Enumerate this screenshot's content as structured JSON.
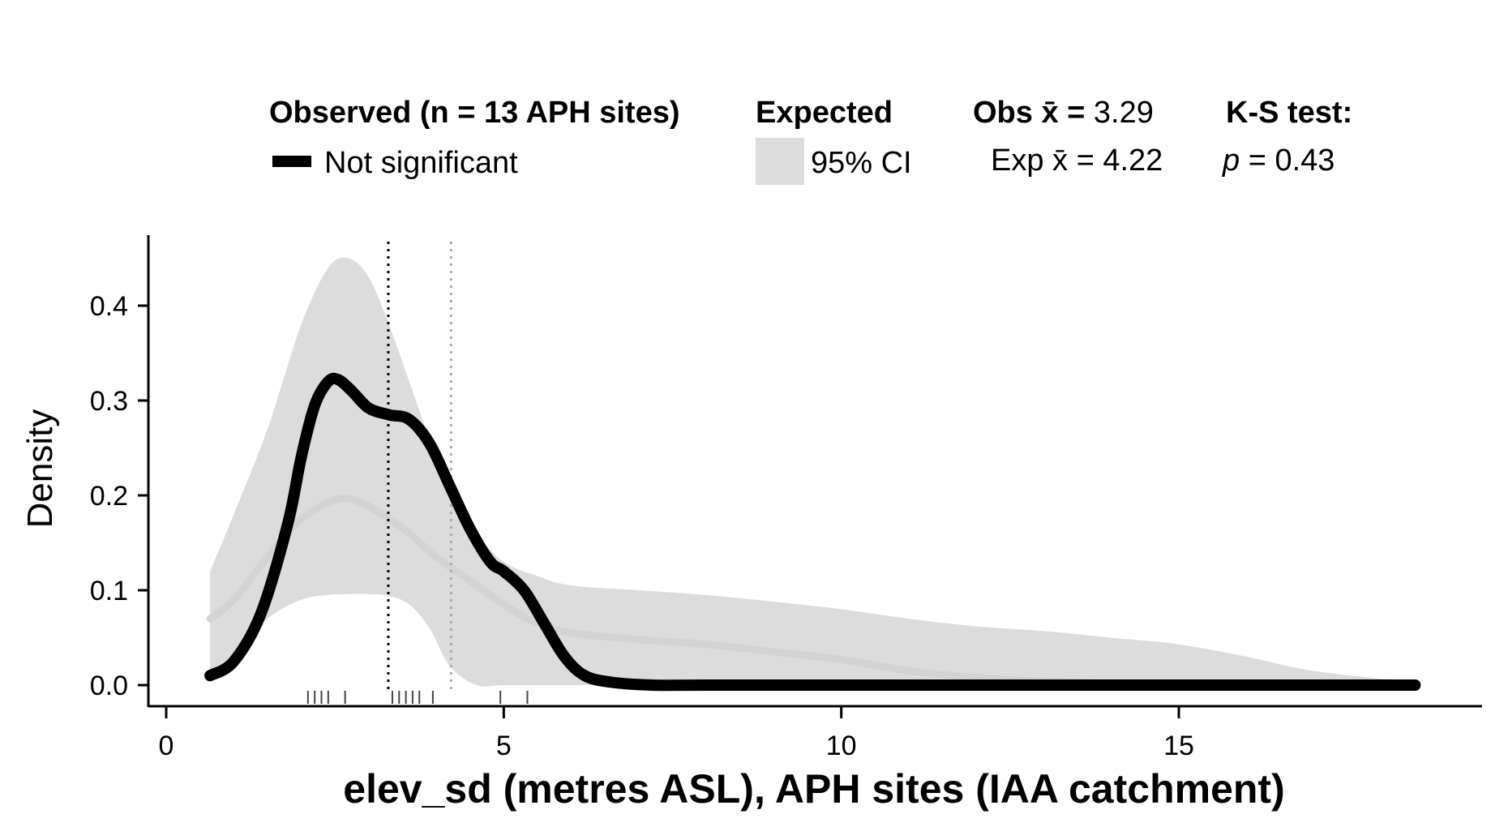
{
  "legend": {
    "observed_heading": "Observed (n = 13 APH sites)",
    "observed_item": "Not significant",
    "expected_heading": "Expected",
    "expected_item": "95% CI",
    "obs_mean_label": "Obs x̄ = ",
    "obs_mean_value": "3.29",
    "exp_mean_label": "Exp x̄ = ",
    "exp_mean_value": "4.22",
    "ks_heading": "K-S test:",
    "ks_p_symbol": "p",
    "ks_p_value": " = 0.43"
  },
  "colors": {
    "observed_line": "#000000",
    "expected_line": "#d3d3d3",
    "ci_band": "#dcdcdc",
    "obs_mean_line": "#000000",
    "exp_mean_line": "#aaaaaa",
    "rug": "#444444"
  },
  "chart_data": {
    "type": "line",
    "xlabel": "elev_sd (metres ASL), APH sites (IAA catchment)",
    "ylabel": "Density",
    "xlim": [
      0,
      19.5
    ],
    "ylim": [
      0,
      0.47
    ],
    "x_ticks": [
      0,
      5,
      10,
      15
    ],
    "y_ticks": [
      0.0,
      0.1,
      0.2,
      0.3,
      0.4
    ],
    "x_tick_labels": [
      "0",
      "5",
      "10",
      "15"
    ],
    "y_tick_labels": [
      "0.0",
      "0.1",
      "0.2",
      "0.3",
      "0.4"
    ],
    "grid": false,
    "legend_position": "top",
    "series": [
      {
        "name": "Not significant",
        "role": "observed",
        "x": [
          0.65,
          1.0,
          1.4,
          1.8,
          2.0,
          2.2,
          2.4,
          2.55,
          2.75,
          3.0,
          3.3,
          3.6,
          3.9,
          4.2,
          4.5,
          4.8,
          5.0,
          5.3,
          5.6,
          5.9,
          6.2,
          6.6,
          7.2,
          8.0,
          10.0,
          12.0,
          15.0,
          18.5
        ],
        "y": [
          0.01,
          0.025,
          0.075,
          0.17,
          0.24,
          0.295,
          0.32,
          0.322,
          0.31,
          0.292,
          0.285,
          0.28,
          0.255,
          0.21,
          0.165,
          0.13,
          0.12,
          0.1,
          0.065,
          0.03,
          0.01,
          0.003,
          0.0,
          0.0,
          0.0,
          0.0,
          0.0,
          0.0
        ]
      },
      {
        "name": "Expected",
        "role": "expected_mean",
        "x": [
          0.65,
          1.0,
          1.5,
          2.0,
          2.5,
          2.8,
          3.2,
          3.6,
          4.0,
          4.5,
          5.0,
          5.5,
          6.0,
          7.0,
          8.0,
          9.0,
          10.0,
          11.0,
          12.0,
          13.0,
          14.0,
          15.0,
          16.0,
          17.0,
          18.5
        ],
        "y": [
          0.07,
          0.09,
          0.135,
          0.175,
          0.195,
          0.195,
          0.18,
          0.16,
          0.135,
          0.11,
          0.085,
          0.065,
          0.055,
          0.048,
          0.043,
          0.035,
          0.027,
          0.015,
          0.008,
          0.004,
          0.002,
          0.001,
          0.0005,
          0.0002,
          0.0
        ]
      }
    ],
    "ci_band": {
      "name": "95% CI",
      "x": [
        0.65,
        1.0,
        1.5,
        2.0,
        2.4,
        2.7,
        3.0,
        3.3,
        3.6,
        3.9,
        4.2,
        4.6,
        5.0,
        5.5,
        6.0,
        7.0,
        8.0,
        9.0,
        10.0,
        11.0,
        12.0,
        13.0,
        14.0,
        15.0,
        16.0,
        17.0,
        18.5
      ],
      "upper": [
        0.12,
        0.18,
        0.27,
        0.38,
        0.44,
        0.45,
        0.43,
        0.38,
        0.32,
        0.26,
        0.21,
        0.16,
        0.13,
        0.115,
        0.105,
        0.1,
        0.095,
        0.088,
        0.08,
        0.07,
        0.062,
        0.057,
        0.05,
        0.043,
        0.03,
        0.015,
        0.003
      ],
      "lower": [
        0.01,
        0.03,
        0.07,
        0.09,
        0.095,
        0.096,
        0.096,
        0.094,
        0.085,
        0.06,
        0.02,
        0.0,
        0.0,
        0.0,
        0.0,
        0.0,
        0.0,
        0.0,
        0.0,
        0.0,
        0.0,
        0.0,
        0.0,
        0.0,
        0.0,
        0.0,
        0.0
      ]
    },
    "mean_lines": [
      {
        "role": "observed_mean",
        "x": 3.29
      },
      {
        "role": "expected_mean",
        "x": 4.22
      }
    ],
    "rug": [
      2.1,
      2.2,
      2.3,
      2.4,
      2.65,
      3.35,
      3.45,
      3.55,
      3.65,
      3.75,
      3.95,
      4.95,
      5.35
    ]
  }
}
